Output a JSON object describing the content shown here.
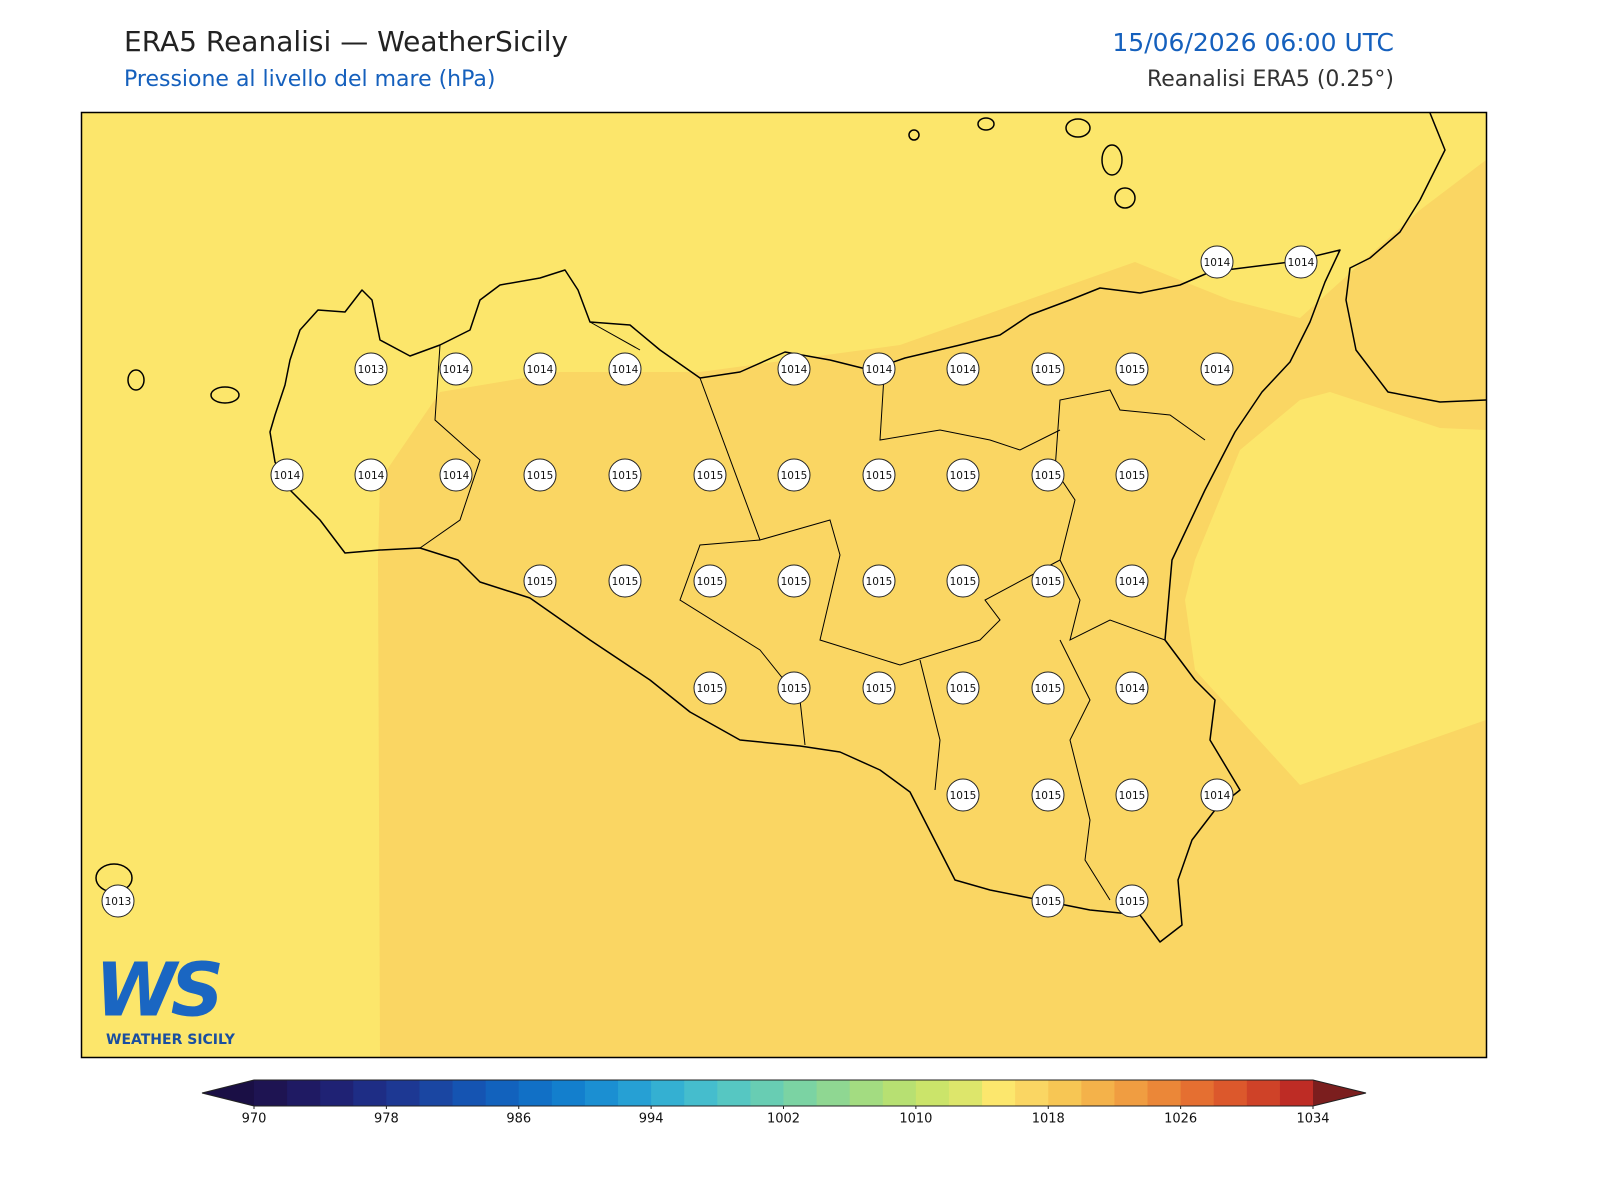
{
  "header": {
    "title": "ERA5 Reanalisi — WeatherSicily",
    "subtitle": "Pressione al livello del mare (hPa)",
    "datetime": "15/06/2026 06:00 UTC",
    "source": "Reanalisi ERA5 (0.25°)"
  },
  "map": {
    "points": [
      1014,
      1014,
      1013,
      1014,
      1014,
      1014,
      1014,
      1014,
      1014,
      1015,
      1015,
      1014,
      1014,
      1014,
      1014,
      1015,
      1015,
      1015,
      1015,
      1015,
      1015,
      1015,
      1015,
      1015,
      1015,
      1015,
      1015,
      1015,
      1015,
      1015,
      1014,
      1015,
      1015,
      1015,
      1015,
      1015,
      1014,
      1015,
      1015,
      1015,
      1014,
      1013,
      1015,
      1015
    ]
  },
  "colorbar": {
    "ticks": [
      970,
      978,
      986,
      994,
      1002,
      1010,
      1018,
      1026,
      1034
    ],
    "colors": [
      "#1e1452",
      "#1f1a63",
      "#1f2274",
      "#1e2d85",
      "#1d3893",
      "#1a46a2",
      "#1554b2",
      "#1262bd",
      "#1170c6",
      "#137fcd",
      "#1b8fd2",
      "#26a0d4",
      "#34b0d2",
      "#45bdcd",
      "#56c7c2",
      "#68cdb3",
      "#7bd3a3",
      "#8fd792",
      "#a3dc81",
      "#b7e072",
      "#cbe46a",
      "#dde66b",
      "#fce76d",
      "#fad663",
      "#f7c654",
      "#f4b24a",
      "#f09d41",
      "#eb8738",
      "#e56f31",
      "#dc582c",
      "#cf4228",
      "#be2c25"
    ],
    "under_color": "#1a0f45",
    "over_color": "#7b1e1e"
  },
  "logo": {
    "mark": "WS",
    "text": "WEATHER SICILY"
  }
}
